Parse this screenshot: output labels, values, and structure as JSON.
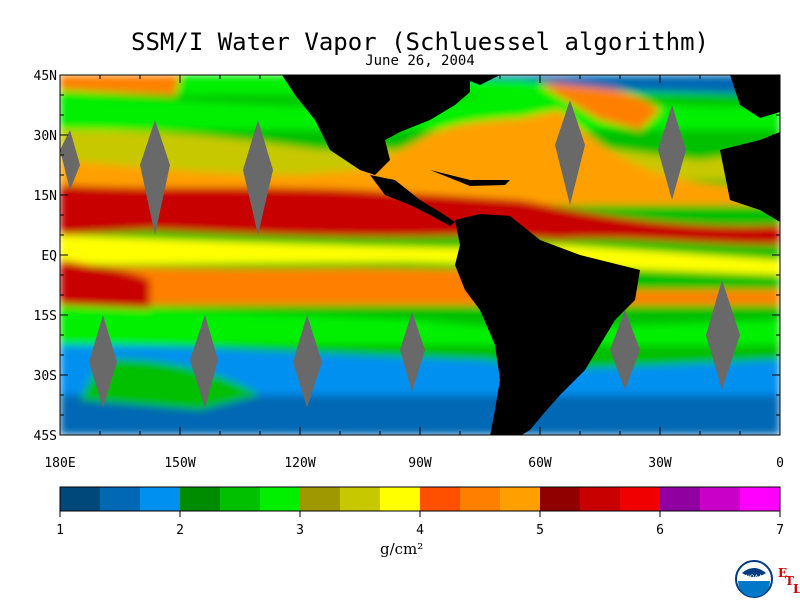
{
  "title": "SSM/I Water Vapor (Schluessel algorithm)",
  "subtitle": "June 26, 2004",
  "lat_ticks": [
    {
      "label": "45N",
      "lat": 45
    },
    {
      "label": "30N",
      "lat": 30
    },
    {
      "label": "15N",
      "lat": 15
    },
    {
      "label": "EQ",
      "lat": 0
    },
    {
      "label": "15S",
      "lat": -15
    },
    {
      "label": "30S",
      "lat": -30
    },
    {
      "label": "45S",
      "lat": -45
    }
  ],
  "lon_ticks": [
    {
      "label": "180E",
      "lon": -180
    },
    {
      "label": "150W",
      "lon": -150
    },
    {
      "label": "120W",
      "lon": -120
    },
    {
      "label": "90W",
      "lon": -90
    },
    {
      "label": "60W",
      "lon": -60
    },
    {
      "label": "30W",
      "lon": -30
    },
    {
      "label": "0",
      "lon": 0
    }
  ],
  "colorbar": {
    "colors": [
      "#00487a",
      "#0068b4",
      "#0090f0",
      "#008c00",
      "#00c000",
      "#00f000",
      "#a09800",
      "#c8c800",
      "#ffff00",
      "#ff5000",
      "#ff8000",
      "#ffa000",
      "#900000",
      "#c80000",
      "#f00000",
      "#9000a0",
      "#c800c8",
      "#ff00ff"
    ],
    "ticks": [
      {
        "label": "1",
        "value": 1
      },
      {
        "label": "2",
        "value": 2
      },
      {
        "label": "3",
        "value": 3
      },
      {
        "label": "4",
        "value": 4
      },
      {
        "label": "5",
        "value": 5
      },
      {
        "label": "6",
        "value": 6
      },
      {
        "label": "7",
        "value": 7
      }
    ],
    "unit": "g/cm²"
  },
  "colors": {
    "land": "#000000",
    "gap": "#696969"
  },
  "logo": {
    "text": "NOAA",
    "e": "E",
    "t": "T",
    "l": "L"
  }
}
